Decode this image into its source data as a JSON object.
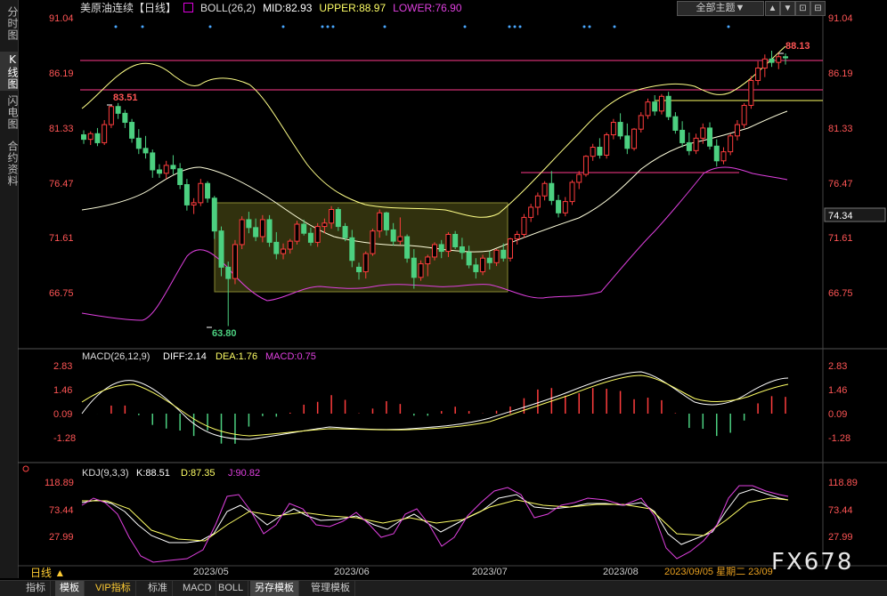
{
  "side_tabs": [
    "分时图",
    "K线图",
    "闪电图",
    "合约资料"
  ],
  "header": {
    "name": "美原油连续【日线】",
    "boll_label": "BOLL(26,2)",
    "mid": "MID:82.93",
    "upper": "UPPER:88.97",
    "lower": "LOWER:76.90",
    "template_label": "全部主题▼",
    "tool_icons": [
      "▲",
      "▼",
      "⊡",
      "⊟",
      "⊠"
    ]
  },
  "colors": {
    "up": "#ff3d3d",
    "down": "#4cd080",
    "mid": "#ffff88",
    "upper": "#ffff88",
    "lower": "#e040e0",
    "macd_dea": "#ffff66",
    "white": "#ffffff"
  },
  "price_axis": {
    "labels": [
      "91.04",
      "86.19",
      "81.33",
      "76.47",
      "71.61",
      "66.75"
    ],
    "current": "74.34"
  },
  "annotations": {
    "high_left": "83.51",
    "low": "63.80",
    "high_right": "88.13"
  },
  "macd": {
    "label": "MACD(26,12,9)",
    "diff": "DIFF:2.14",
    "dea": "DEA:1.76",
    "macd": "MACD:0.75",
    "axis": [
      "2.83",
      "1.46",
      "0.09",
      "-1.28"
    ]
  },
  "kdj": {
    "label": "KDJ(9,3,3)",
    "k": "K:88.51",
    "d": "D:87.35",
    "j": "J:90.82",
    "axis": [
      "118.89",
      "73.44",
      "27.99"
    ]
  },
  "x_axis": {
    "labels": [
      "2023/05",
      "2023/06",
      "2023/07",
      "2023/08"
    ],
    "cursor": "2023/09/05 星期二 23/09"
  },
  "period_label": "日线 ▲",
  "toolbar": [
    "指标",
    "模板",
    "VIP指标",
    "标准",
    "MACD",
    "BOLL",
    "另存模板",
    "管理模板"
  ],
  "watermark": "FX678",
  "chart_data": {
    "type": "candlestick",
    "title": "美原油连续【日线】",
    "candles": [
      [
        80.7,
        81.1,
        79.9,
        80.3
      ],
      [
        80.3,
        81.0,
        79.8,
        80.8
      ],
      [
        80.8,
        81.3,
        79.7,
        80.0
      ],
      [
        80.0,
        82.0,
        79.8,
        81.6
      ],
      [
        81.6,
        83.3,
        81.3,
        83.2
      ],
      [
        83.2,
        83.51,
        82.1,
        82.6
      ],
      [
        82.6,
        82.9,
        81.3,
        81.8
      ],
      [
        81.8,
        82.1,
        80.0,
        80.4
      ],
      [
        80.4,
        81.2,
        79.0,
        79.5
      ],
      [
        79.5,
        80.6,
        78.6,
        79.1
      ],
      [
        79.1,
        79.4,
        76.9,
        77.6
      ],
      [
        77.6,
        78.1,
        76.9,
        77.3
      ],
      [
        77.3,
        78.4,
        76.8,
        78.0
      ],
      [
        78.0,
        78.9,
        77.2,
        77.7
      ],
      [
        77.7,
        78.2,
        75.9,
        76.3
      ],
      [
        76.3,
        76.8,
        74.0,
        74.5
      ],
      [
        74.5,
        75.1,
        73.7,
        74.7
      ],
      [
        74.7,
        76.8,
        74.4,
        76.4
      ],
      [
        76.4,
        76.6,
        74.7,
        75.1
      ],
      [
        75.1,
        75.3,
        71.5,
        72.2
      ],
      [
        72.2,
        72.6,
        68.2,
        69.0
      ],
      [
        69.0,
        69.5,
        63.8,
        68.0
      ],
      [
        68.0,
        71.4,
        67.5,
        71.0
      ],
      [
        71.0,
        73.5,
        70.6,
        73.2
      ],
      [
        73.2,
        73.9,
        72.0,
        72.5
      ],
      [
        72.5,
        73.3,
        71.3,
        71.7
      ],
      [
        71.7,
        73.6,
        71.2,
        73.2
      ],
      [
        73.2,
        73.6,
        70.8,
        71.2
      ],
      [
        71.2,
        72.1,
        69.7,
        70.2
      ],
      [
        70.2,
        71.1,
        69.7,
        70.6
      ],
      [
        70.6,
        71.5,
        70.2,
        71.3
      ],
      [
        71.3,
        73.1,
        71.0,
        72.8
      ],
      [
        72.8,
        73.2,
        71.8,
        72.0
      ],
      [
        72.0,
        72.5,
        70.9,
        71.2
      ],
      [
        71.2,
        72.9,
        70.8,
        72.6
      ],
      [
        72.6,
        73.3,
        72.0,
        72.9
      ],
      [
        72.9,
        74.4,
        72.4,
        74.1
      ],
      [
        74.1,
        74.3,
        72.2,
        72.6
      ],
      [
        72.6,
        72.9,
        71.3,
        71.6
      ],
      [
        71.6,
        72.3,
        69.0,
        69.6
      ],
      [
        69.0,
        69.4,
        67.9,
        68.6
      ],
      [
        68.6,
        70.4,
        68.0,
        70.2
      ],
      [
        70.2,
        72.4,
        70.0,
        72.2
      ],
      [
        72.2,
        74.1,
        71.6,
        73.8
      ],
      [
        73.8,
        73.9,
        71.8,
        72.3
      ],
      [
        72.3,
        72.9,
        70.9,
        71.3
      ],
      [
        71.3,
        73.4,
        71.0,
        71.7
      ],
      [
        71.7,
        71.9,
        69.4,
        69.8
      ],
      [
        69.8,
        70.6,
        67.1,
        68.1
      ],
      [
        68.1,
        69.6,
        67.8,
        69.3
      ],
      [
        69.3,
        70.1,
        68.2,
        69.9
      ],
      [
        69.9,
        71.2,
        69.6,
        71.0
      ],
      [
        71.0,
        71.4,
        69.8,
        70.4
      ],
      [
        70.4,
        72.1,
        69.9,
        71.9
      ],
      [
        71.9,
        72.2,
        70.6,
        70.8
      ],
      [
        70.8,
        71.6,
        69.7,
        70.3
      ],
      [
        70.3,
        70.9,
        68.9,
        69.2
      ],
      [
        69.2,
        69.8,
        68.0,
        68.6
      ],
      [
        68.6,
        70.1,
        68.3,
        69.8
      ],
      [
        69.8,
        70.4,
        68.8,
        69.4
      ],
      [
        69.4,
        70.6,
        69.1,
        70.5
      ],
      [
        70.5,
        71.1,
        69.5,
        69.8
      ],
      [
        69.8,
        71.6,
        69.5,
        71.5
      ],
      [
        71.5,
        72.2,
        71.0,
        71.9
      ],
      [
        71.9,
        73.7,
        71.6,
        73.4
      ],
      [
        73.4,
        74.6,
        73.0,
        74.3
      ],
      [
        74.3,
        75.6,
        73.6,
        75.3
      ],
      [
        75.3,
        76.6,
        74.9,
        76.4
      ],
      [
        76.4,
        77.5,
        74.5,
        74.9
      ],
      [
        74.9,
        75.4,
        73.4,
        73.8
      ],
      [
        73.8,
        75.2,
        73.5,
        74.8
      ],
      [
        74.8,
        76.7,
        74.5,
        76.5
      ],
      [
        76.5,
        77.5,
        75.9,
        77.2
      ],
      [
        77.2,
        78.9,
        77.0,
        78.8
      ],
      [
        78.8,
        79.9,
        78.4,
        79.6
      ],
      [
        79.6,
        80.4,
        78.6,
        78.9
      ],
      [
        78.9,
        80.9,
        78.6,
        80.7
      ],
      [
        80.7,
        82.1,
        80.3,
        81.8
      ],
      [
        81.8,
        82.6,
        80.3,
        80.6
      ],
      [
        80.6,
        81.7,
        79.0,
        79.5
      ],
      [
        79.5,
        81.3,
        79.3,
        81.2
      ],
      [
        81.2,
        82.7,
        80.9,
        82.4
      ],
      [
        82.4,
        83.9,
        82.1,
        83.6
      ],
      [
        83.6,
        84.2,
        82.4,
        82.8
      ],
      [
        82.8,
        84.3,
        82.5,
        84.1
      ],
      [
        84.1,
        84.5,
        82.0,
        82.3
      ],
      [
        82.3,
        82.7,
        80.8,
        81.1
      ],
      [
        81.1,
        81.9,
        79.6,
        80.0
      ],
      [
        80.0,
        80.9,
        78.9,
        79.3
      ],
      [
        79.3,
        80.8,
        79.0,
        80.4
      ],
      [
        80.4,
        81.7,
        79.9,
        81.3
      ],
      [
        81.3,
        81.8,
        79.4,
        79.7
      ],
      [
        79.7,
        80.3,
        77.9,
        78.4
      ],
      [
        78.4,
        79.6,
        78.1,
        79.2
      ],
      [
        79.2,
        80.8,
        78.9,
        80.6
      ],
      [
        80.6,
        82.0,
        80.2,
        81.6
      ],
      [
        81.6,
        83.5,
        81.3,
        83.3
      ],
      [
        83.3,
        85.9,
        83.0,
        85.5
      ],
      [
        85.5,
        87.2,
        85.1,
        86.6
      ],
      [
        86.6,
        87.8,
        85.8,
        87.4
      ],
      [
        87.4,
        88.13,
        86.7,
        87.1
      ],
      [
        87.1,
        88.0,
        86.5,
        87.6
      ],
      [
        87.6,
        87.9,
        86.9,
        87.5
      ]
    ],
    "price_range": [
      63.0,
      92.0
    ],
    "yticks": [
      91.04,
      86.19,
      81.33,
      76.47,
      71.61,
      66.75
    ],
    "xlabels": [
      "2023/05",
      "2023/06",
      "2023/07",
      "2023/08"
    ]
  }
}
